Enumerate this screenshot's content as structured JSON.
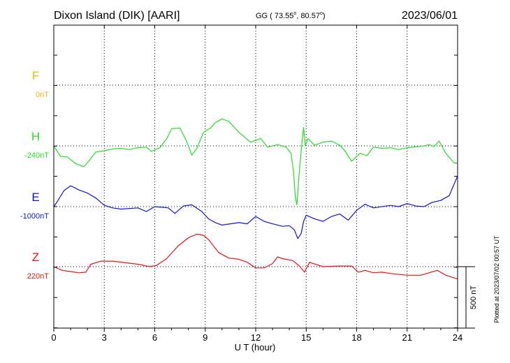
{
  "header": {
    "station": "Dixon Island (DIK)  [AARI]",
    "coords_prefix": "GG ( 73.55",
    "coords_mid": ",  80.57",
    "coords_suffix": ")",
    "date": "2023/06/01"
  },
  "plotted_note": "Plotted at 2023/07/02 00:57 UT",
  "chart_data": {
    "type": "line",
    "xlabel": "U T (hour)",
    "xlim": [
      0,
      24
    ],
    "xticks": [
      "0",
      "3",
      "6",
      "9",
      "12",
      "15",
      "18",
      "21",
      "24"
    ],
    "grid": true,
    "scale_bar": {
      "label": "500 nT",
      "value": 500
    },
    "series": [
      {
        "name": "F",
        "baseline_label": "0nT",
        "color": "#f5b800",
        "points": []
      },
      {
        "name": "H",
        "baseline_label": "-240nT",
        "color": "#22e022",
        "points": [
          [
            0.0,
            -240
          ],
          [
            0.4,
            -325
          ],
          [
            0.8,
            -330
          ],
          [
            1.3,
            -385
          ],
          [
            1.8,
            -410
          ],
          [
            2.1,
            -360
          ],
          [
            2.5,
            -290
          ],
          [
            3.0,
            -280
          ],
          [
            3.5,
            -265
          ],
          [
            4.0,
            -260
          ],
          [
            4.5,
            -270
          ],
          [
            5.0,
            -255
          ],
          [
            5.5,
            -250
          ],
          [
            5.8,
            -285
          ],
          [
            6.3,
            -255
          ],
          [
            6.7,
            -185
          ],
          [
            7.0,
            -100
          ],
          [
            7.5,
            -95
          ],
          [
            7.9,
            -205
          ],
          [
            8.2,
            -315
          ],
          [
            8.5,
            -260
          ],
          [
            8.9,
            -130
          ],
          [
            9.3,
            -95
          ],
          [
            9.6,
            -50
          ],
          [
            10.0,
            -20
          ],
          [
            10.4,
            -40
          ],
          [
            11.0,
            -130
          ],
          [
            11.7,
            -210
          ],
          [
            12.3,
            -180
          ],
          [
            12.7,
            -250
          ],
          [
            13.3,
            -230
          ],
          [
            13.8,
            -250
          ],
          [
            14.1,
            -300
          ],
          [
            14.25,
            -450
          ],
          [
            14.35,
            -650
          ],
          [
            14.45,
            -720
          ],
          [
            14.6,
            -440
          ],
          [
            14.75,
            -210
          ],
          [
            14.85,
            -90
          ],
          [
            14.95,
            -240
          ],
          [
            15.1,
            -180
          ],
          [
            15.5,
            -235
          ],
          [
            16.0,
            -210
          ],
          [
            16.5,
            -200
          ],
          [
            17.0,
            -235
          ],
          [
            17.3,
            -280
          ],
          [
            17.7,
            -365
          ],
          [
            18.2,
            -300
          ],
          [
            18.6,
            -320
          ],
          [
            19.0,
            -250
          ],
          [
            19.5,
            -260
          ],
          [
            20.0,
            -255
          ],
          [
            20.5,
            -270
          ],
          [
            21.0,
            -255
          ],
          [
            22.0,
            -240
          ],
          [
            22.3,
            -230
          ],
          [
            22.6,
            -245
          ],
          [
            22.9,
            -200
          ],
          [
            23.3,
            -300
          ],
          [
            23.8,
            -380
          ],
          [
            24.0,
            -380
          ]
        ]
      },
      {
        "name": "E",
        "baseline_label": "-1000nT",
        "color": "#1111dd",
        "points": [
          [
            0.0,
            -1000
          ],
          [
            0.2,
            -960
          ],
          [
            0.6,
            -870
          ],
          [
            1.0,
            -830
          ],
          [
            1.5,
            -865
          ],
          [
            2.0,
            -890
          ],
          [
            2.5,
            -930
          ],
          [
            3.0,
            -990
          ],
          [
            3.5,
            -1010
          ],
          [
            4.0,
            -1020
          ],
          [
            5.0,
            -1010
          ],
          [
            5.5,
            -1040
          ],
          [
            6.0,
            -1000
          ],
          [
            6.8,
            -1010
          ],
          [
            7.2,
            -1055
          ],
          [
            7.7,
            -995
          ],
          [
            8.2,
            -985
          ],
          [
            8.8,
            -1040
          ],
          [
            9.2,
            -1100
          ],
          [
            9.6,
            -1130
          ],
          [
            10.0,
            -1150
          ],
          [
            11.0,
            -1130
          ],
          [
            11.5,
            -1140
          ],
          [
            12.0,
            -1080
          ],
          [
            12.5,
            -1120
          ],
          [
            13.0,
            -1140
          ],
          [
            13.6,
            -1160
          ],
          [
            14.0,
            -1155
          ],
          [
            14.3,
            -1190
          ],
          [
            14.5,
            -1260
          ],
          [
            14.7,
            -1220
          ],
          [
            14.85,
            -1120
          ],
          [
            15.0,
            -1070
          ],
          [
            15.5,
            -1100
          ],
          [
            16.0,
            -1120
          ],
          [
            16.5,
            -1080
          ],
          [
            17.0,
            -1060
          ],
          [
            17.5,
            -1110
          ],
          [
            18.0,
            -1030
          ],
          [
            18.5,
            -980
          ],
          [
            19.0,
            -1010
          ],
          [
            20.0,
            -990
          ],
          [
            20.5,
            -1000
          ],
          [
            21.0,
            -975
          ],
          [
            21.5,
            -995
          ],
          [
            22.0,
            -1000
          ],
          [
            22.5,
            -965
          ],
          [
            23.0,
            -950
          ],
          [
            23.5,
            -910
          ],
          [
            24.0,
            -750
          ]
        ]
      },
      {
        "name": "Z",
        "baseline_label": "220nT",
        "color": "#ee1111",
        "points": [
          [
            0.0,
            220
          ],
          [
            0.5,
            190
          ],
          [
            1.0,
            180
          ],
          [
            1.5,
            170
          ],
          [
            1.9,
            175
          ],
          [
            2.2,
            240
          ],
          [
            2.8,
            265
          ],
          [
            3.5,
            265
          ],
          [
            5.0,
            240
          ],
          [
            5.7,
            220
          ],
          [
            6.1,
            230
          ],
          [
            6.7,
            285
          ],
          [
            7.4,
            390
          ],
          [
            8.0,
            455
          ],
          [
            8.5,
            485
          ],
          [
            8.9,
            475
          ],
          [
            9.2,
            440
          ],
          [
            9.8,
            335
          ],
          [
            10.4,
            290
          ],
          [
            11.0,
            280
          ],
          [
            11.5,
            255
          ],
          [
            12.0,
            210
          ],
          [
            12.5,
            210
          ],
          [
            13.0,
            245
          ],
          [
            13.3,
            300
          ],
          [
            13.6,
            285
          ],
          [
            14.2,
            270
          ],
          [
            14.6,
            225
          ],
          [
            14.9,
            175
          ],
          [
            15.2,
            255
          ],
          [
            16.0,
            220
          ],
          [
            17.0,
            225
          ],
          [
            17.7,
            225
          ],
          [
            18.1,
            175
          ],
          [
            18.5,
            190
          ],
          [
            19.0,
            170
          ],
          [
            19.5,
            175
          ],
          [
            20.0,
            165
          ],
          [
            21.0,
            150
          ],
          [
            21.8,
            150
          ],
          [
            22.3,
            170
          ],
          [
            22.8,
            190
          ],
          [
            23.3,
            150
          ],
          [
            24.0,
            120
          ]
        ]
      }
    ]
  }
}
